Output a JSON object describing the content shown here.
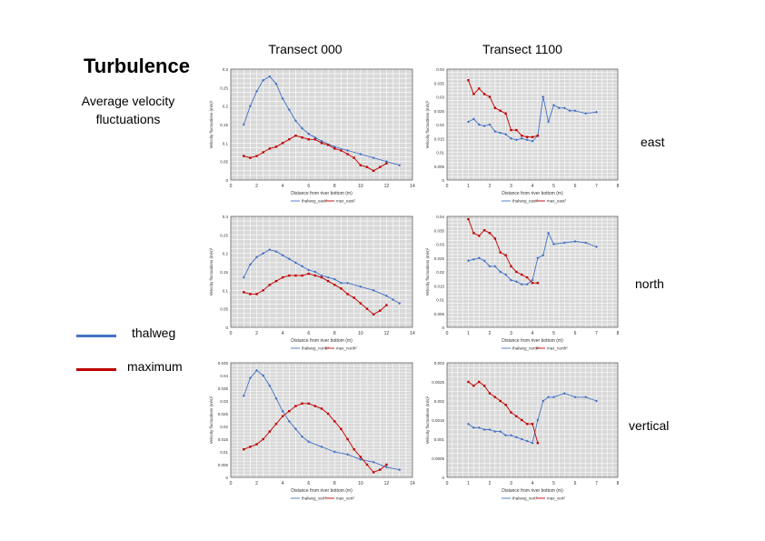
{
  "slide": {
    "title": "Turbulence",
    "subtitle_line1": "Average velocity",
    "subtitle_line2": "fluctuations",
    "col_headers": [
      "Transect 000",
      "Transect 1100"
    ],
    "row_labels": [
      "east",
      "north",
      "vertical"
    ],
    "legend": [
      {
        "label": "thalweg",
        "color": "#4472c4"
      },
      {
        "label": "maximum",
        "color": "#c00000"
      }
    ]
  },
  "colors": {
    "thalweg": "#4472c4",
    "maximum": "#c00000",
    "plot_bg": "#d9d9d9",
    "grid": "#ffffff"
  },
  "chart_data": [
    {
      "id": "t000-east",
      "type": "line",
      "xlabel": "Distance from river bottom (m)",
      "ylabel": "Velocity fluctuations (m/s)²",
      "xlim": [
        0,
        14
      ],
      "ylim": [
        0,
        0.3
      ],
      "xticks": [
        0,
        2,
        4,
        6,
        8,
        10,
        12,
        14
      ],
      "yticks": [
        0,
        0.05,
        0.1,
        0.15,
        0.2,
        0.25,
        0.3
      ],
      "ytick_labels": [
        "0",
        "0.05",
        "0.1",
        "0.15",
        "0.2",
        "0.25",
        "0.3"
      ],
      "series": [
        {
          "name": "thalweg_east²",
          "role": "thalweg",
          "x": [
            1,
            1.5,
            2,
            2.5,
            3,
            3.5,
            4,
            4.5,
            5,
            5.5,
            6,
            6.5,
            7,
            8,
            9,
            10,
            11,
            12,
            13
          ],
          "y": [
            0.15,
            0.2,
            0.24,
            0.27,
            0.28,
            0.26,
            0.22,
            0.19,
            0.16,
            0.14,
            0.125,
            0.115,
            0.105,
            0.09,
            0.08,
            0.07,
            0.06,
            0.05,
            0.04
          ]
        },
        {
          "name": "max_east²",
          "role": "maximum",
          "x": [
            1,
            1.5,
            2,
            2.5,
            3,
            3.5,
            4,
            4.5,
            5,
            5.5,
            6,
            6.5,
            7,
            7.5,
            8,
            8.5,
            9,
            9.5,
            10,
            10.5,
            11,
            11.5,
            12
          ],
          "y": [
            0.065,
            0.06,
            0.065,
            0.075,
            0.085,
            0.09,
            0.1,
            0.11,
            0.12,
            0.115,
            0.11,
            0.11,
            0.1,
            0.095,
            0.085,
            0.08,
            0.07,
            0.06,
            0.04,
            0.035,
            0.025,
            0.035,
            0.045
          ]
        }
      ]
    },
    {
      "id": "t1100-east",
      "type": "line",
      "xlabel": "Distance from river bottom (m)",
      "ylabel": "Velocity fluctuations (m/s)²",
      "xlim": [
        0,
        8
      ],
      "ylim": [
        0,
        0.04
      ],
      "xticks": [
        0,
        1,
        2,
        3,
        4,
        5,
        6,
        7,
        8
      ],
      "yticks": [
        0,
        0.005,
        0.01,
        0.015,
        0.02,
        0.025,
        0.03,
        0.035,
        0.04
      ],
      "ytick_labels": [
        "0",
        "0.005",
        "0.01",
        "0.015",
        "0.02",
        "0.025",
        "0.03",
        "0.035",
        "0.04"
      ],
      "series": [
        {
          "name": "thalweg_east²",
          "role": "thalweg",
          "x": [
            1,
            1.25,
            1.5,
            1.75,
            2,
            2.25,
            2.5,
            2.75,
            3,
            3.25,
            3.5,
            3.75,
            4,
            4.25,
            4.5,
            4.75,
            5,
            5.25,
            5.5,
            5.75,
            6,
            6.5,
            7
          ],
          "y": [
            0.021,
            0.022,
            0.02,
            0.0195,
            0.02,
            0.0175,
            0.017,
            0.0165,
            0.015,
            0.0145,
            0.015,
            0.0145,
            0.014,
            0.016,
            0.03,
            0.021,
            0.027,
            0.026,
            0.026,
            0.025,
            0.025,
            0.024,
            0.0245
          ]
        },
        {
          "name": "max_east²",
          "role": "maximum",
          "x": [
            1,
            1.25,
            1.5,
            1.75,
            2,
            2.25,
            2.5,
            2.75,
            3,
            3.25,
            3.5,
            3.75,
            4,
            4.25
          ],
          "y": [
            0.036,
            0.031,
            0.033,
            0.031,
            0.03,
            0.026,
            0.025,
            0.024,
            0.018,
            0.018,
            0.016,
            0.0155,
            0.0155,
            0.016
          ]
        }
      ]
    },
    {
      "id": "t000-north",
      "type": "line",
      "xlabel": "Distance from river bottom (m)",
      "ylabel": "Velocity fluctuations (m/s)²",
      "xlim": [
        0,
        14
      ],
      "ylim": [
        0,
        0.3
      ],
      "xticks": [
        0,
        2,
        4,
        6,
        8,
        10,
        12,
        14
      ],
      "yticks": [
        0,
        0.05,
        0.1,
        0.15,
        0.2,
        0.25,
        0.3
      ],
      "ytick_labels": [
        "0",
        "0.05",
        "0.1",
        "0.15",
        "0.2",
        "0.25",
        "0.3"
      ],
      "series": [
        {
          "name": "thalweg_north²",
          "role": "thalweg",
          "x": [
            1,
            1.5,
            2,
            2.5,
            3,
            3.5,
            4,
            4.5,
            5,
            5.5,
            6,
            6.5,
            7,
            7.5,
            8,
            8.5,
            9,
            10,
            11,
            12,
            12.5,
            13
          ],
          "y": [
            0.135,
            0.17,
            0.19,
            0.2,
            0.21,
            0.205,
            0.195,
            0.185,
            0.175,
            0.165,
            0.155,
            0.15,
            0.14,
            0.135,
            0.13,
            0.12,
            0.12,
            0.11,
            0.1,
            0.085,
            0.075,
            0.065
          ]
        },
        {
          "name": "max_north²",
          "role": "maximum",
          "x": [
            1,
            1.5,
            2,
            2.5,
            3,
            3.5,
            4,
            4.5,
            5,
            5.5,
            6,
            6.5,
            7,
            7.5,
            8,
            8.5,
            9,
            9.5,
            10,
            10.5,
            11,
            11.5,
            12
          ],
          "y": [
            0.095,
            0.09,
            0.09,
            0.1,
            0.115,
            0.125,
            0.135,
            0.14,
            0.14,
            0.14,
            0.145,
            0.14,
            0.135,
            0.125,
            0.115,
            0.105,
            0.09,
            0.08,
            0.065,
            0.05,
            0.035,
            0.045,
            0.06
          ]
        }
      ]
    },
    {
      "id": "t1100-north",
      "type": "line",
      "xlabel": "Distance from river bottom (m)",
      "ylabel": "Velocity fluctuations (m/s)²",
      "xlim": [
        0,
        8
      ],
      "ylim": [
        0,
        0.04
      ],
      "xticks": [
        0,
        1,
        2,
        3,
        4,
        5,
        6,
        7,
        8
      ],
      "yticks": [
        0,
        0.005,
        0.01,
        0.015,
        0.02,
        0.025,
        0.03,
        0.035,
        0.04
      ],
      "ytick_labels": [
        "0",
        "0.005",
        "0.01",
        "0.015",
        "0.02",
        "0.025",
        "0.03",
        "0.035",
        "0.04"
      ],
      "series": [
        {
          "name": "thalweg_north²",
          "role": "thalweg",
          "x": [
            1,
            1.25,
            1.5,
            1.75,
            2,
            2.25,
            2.5,
            2.75,
            3,
            3.25,
            3.5,
            3.75,
            4,
            4.25,
            4.5,
            4.75,
            5,
            5.5,
            6,
            6.5,
            7
          ],
          "y": [
            0.024,
            0.0245,
            0.025,
            0.024,
            0.022,
            0.022,
            0.02,
            0.019,
            0.017,
            0.0165,
            0.0155,
            0.0155,
            0.017,
            0.025,
            0.026,
            0.034,
            0.03,
            0.0305,
            0.031,
            0.0305,
            0.029
          ]
        },
        {
          "name": "max_north²",
          "role": "maximum",
          "x": [
            1,
            1.25,
            1.5,
            1.75,
            2,
            2.25,
            2.5,
            2.75,
            3,
            3.25,
            3.5,
            3.75,
            4,
            4.25
          ],
          "y": [
            0.039,
            0.034,
            0.033,
            0.035,
            0.034,
            0.032,
            0.027,
            0.026,
            0.022,
            0.02,
            0.019,
            0.018,
            0.016,
            0.016
          ]
        }
      ]
    },
    {
      "id": "t000-vertical",
      "type": "line",
      "xlabel": "Distance from river bottom (m)",
      "ylabel": "Velocity fluctuations (m/s)²",
      "xlim": [
        0,
        14
      ],
      "ylim": [
        0,
        0.045
      ],
      "xticks": [
        0,
        2,
        4,
        6,
        8,
        10,
        12,
        14
      ],
      "yticks": [
        0,
        0.005,
        0.01,
        0.015,
        0.02,
        0.025,
        0.03,
        0.035,
        0.04,
        0.045
      ],
      "ytick_labels": [
        "0",
        "0.005",
        "0.01",
        "0.015",
        "0.02",
        "0.025",
        "0.03",
        "0.035",
        "0.04",
        "0.045"
      ],
      "series": [
        {
          "name": "thalweg_vert²",
          "role": "thalweg",
          "x": [
            1,
            1.5,
            2,
            2.5,
            3,
            3.5,
            4,
            4.5,
            5,
            5.5,
            6,
            7,
            8,
            9,
            10,
            11,
            12,
            13
          ],
          "y": [
            0.032,
            0.039,
            0.042,
            0.04,
            0.036,
            0.031,
            0.026,
            0.022,
            0.019,
            0.016,
            0.014,
            0.012,
            0.01,
            0.009,
            0.007,
            0.006,
            0.004,
            0.003
          ]
        },
        {
          "name": "max_vert²",
          "role": "maximum",
          "x": [
            1,
            1.5,
            2,
            2.5,
            3,
            3.5,
            4,
            4.5,
            5,
            5.5,
            6,
            6.5,
            7,
            7.5,
            8,
            8.5,
            9,
            9.5,
            10,
            10.5,
            11,
            11.5,
            12
          ],
          "y": [
            0.011,
            0.012,
            0.013,
            0.015,
            0.018,
            0.021,
            0.024,
            0.026,
            0.028,
            0.029,
            0.029,
            0.028,
            0.027,
            0.025,
            0.022,
            0.019,
            0.015,
            0.011,
            0.008,
            0.005,
            0.002,
            0.003,
            0.005
          ]
        }
      ]
    },
    {
      "id": "t1100-vertical",
      "type": "line",
      "xlabel": "Distance from river bottom (m)",
      "ylabel": "Velocity fluctuations (m/s)²",
      "xlim": [
        0,
        8
      ],
      "ylim": [
        0,
        0.003
      ],
      "xticks": [
        0,
        1,
        2,
        3,
        4,
        5,
        6,
        7,
        8
      ],
      "yticks": [
        0,
        0.0005,
        0.001,
        0.0015,
        0.002,
        0.0025,
        0.003
      ],
      "ytick_labels": [
        "0",
        "0.0005",
        "0.001",
        "0.0015",
        "0.002",
        "0.0025",
        "0.003"
      ],
      "series": [
        {
          "name": "thalweg_vert²",
          "role": "thalweg",
          "x": [
            1,
            1.25,
            1.5,
            1.75,
            2,
            2.25,
            2.5,
            2.75,
            3,
            3.25,
            3.5,
            3.75,
            4,
            4.25,
            4.5,
            4.75,
            5,
            5.5,
            6,
            6.5,
            7
          ],
          "y": [
            0.0014,
            0.0013,
            0.0013,
            0.00125,
            0.00125,
            0.0012,
            0.0012,
            0.0011,
            0.0011,
            0.00105,
            0.001,
            0.00095,
            0.0009,
            0.0015,
            0.002,
            0.0021,
            0.0021,
            0.0022,
            0.0021,
            0.0021,
            0.002
          ]
        },
        {
          "name": "max_vert²",
          "role": "maximum",
          "x": [
            1,
            1.25,
            1.5,
            1.75,
            2,
            2.25,
            2.5,
            2.75,
            3,
            3.25,
            3.5,
            3.75,
            4,
            4.25
          ],
          "y": [
            0.0025,
            0.0024,
            0.0025,
            0.0024,
            0.0022,
            0.0021,
            0.002,
            0.0019,
            0.0017,
            0.0016,
            0.0015,
            0.0014,
            0.0014,
            0.0009
          ]
        }
      ]
    }
  ]
}
